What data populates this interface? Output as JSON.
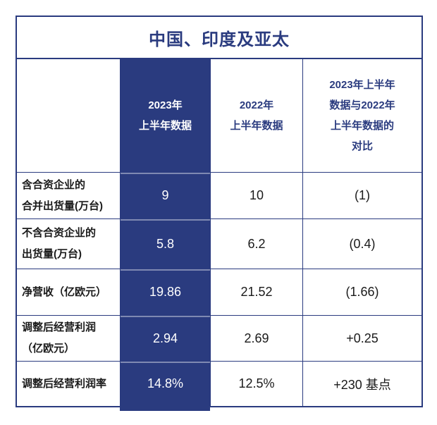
{
  "colors": {
    "navy": "#2A3B7F",
    "text": "#1A1A1A",
    "highlight_text": "#FFFFFF",
    "background": "#FFFFFF"
  },
  "title": "中国、印度及亚太",
  "table": {
    "header": {
      "empty": "",
      "col2023": {
        "lines": [
          "2023年",
          "上半年数据"
        ]
      },
      "col2022": {
        "lines": [
          "2022年",
          "上半年数据"
        ]
      },
      "compare": {
        "lines": [
          "2023年上半年",
          "数据与2022年",
          "上半年数据的",
          "对比"
        ]
      }
    },
    "rows": [
      {
        "label_lines": [
          "含合资企业的",
          "合并出货量(万台)"
        ],
        "v2023": "9",
        "v2022": "10",
        "delta": "(1)"
      },
      {
        "label_lines": [
          "不含合资企业的",
          "出货量(万台)"
        ],
        "v2023": "5.8",
        "v2022": "6.2",
        "delta": "(0.4)"
      },
      {
        "label_lines": [
          "净营收（亿欧元）"
        ],
        "v2023": "19.86",
        "v2022": "21.52",
        "delta": "(1.66)"
      },
      {
        "label_lines": [
          "调整后经营利润",
          "（亿欧元）"
        ],
        "v2023": "2.94",
        "v2022": "2.69",
        "delta": "+0.25"
      },
      {
        "label_lines": [
          "调整后经营利润率"
        ],
        "v2023": "14.8%",
        "v2022": "12.5%",
        "delta": "+230 基点"
      }
    ]
  },
  "chart_data": {
    "type": "table",
    "title": "中国、印度及亚太",
    "columns": [
      "",
      "2023年上半年数据",
      "2022年上半年数据",
      "2023年上半年数据与2022年上半年数据的对比"
    ],
    "highlight_column": "2023年上半年数据",
    "rows": [
      [
        "含合资企业的合并出货量(万台)",
        "9",
        "10",
        "(1)"
      ],
      [
        "不含合资企业的出货量(万台)",
        "5.8",
        "6.2",
        "(0.4)"
      ],
      [
        "净营收（亿欧元）",
        "19.86",
        "21.52",
        "(1.66)"
      ],
      [
        "调整后经营利润（亿欧元）",
        "2.94",
        "2.69",
        "+0.25"
      ],
      [
        "调整后经营利润率",
        "14.8%",
        "12.5%",
        "+230 基点"
      ]
    ]
  }
}
